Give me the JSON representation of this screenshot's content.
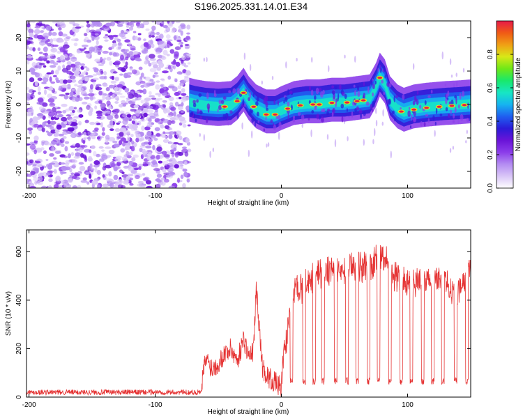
{
  "figure_title": "S196.2025.331.14.01.E34",
  "colors": {
    "axis": "#000000",
    "snr_line": "#e53232",
    "background": "#ffffff",
    "colormap": [
      "#ffffff",
      "#d9c6f7",
      "#b48cf2",
      "#8b3dea",
      "#6a14d8",
      "#2b1bd8",
      "#1f5ff0",
      "#16b4f0",
      "#17e6c4",
      "#19e86b",
      "#6ee817",
      "#d8e817",
      "#f0a015",
      "#f05a15",
      "#e81a4a"
    ]
  },
  "chart_data": [
    {
      "type": "heatmap",
      "name": "spectrogram",
      "title": "S196.2025.331.14.01.E34",
      "xlabel": "Height of straight line (km)",
      "ylabel": "Frequency (Hz)",
      "xlim": [
        -202,
        150
      ],
      "ylim": [
        -25,
        25
      ],
      "xticks": [
        -200,
        -100,
        0,
        100
      ],
      "yticks": [
        -20,
        -10,
        0,
        10,
        20
      ],
      "noise_region_x": [
        -202,
        -73
      ],
      "ridge_start_x": -73,
      "ridge_points": [
        [
          -73,
          0.5
        ],
        [
          -68,
          0
        ],
        [
          -60,
          -0.5
        ],
        [
          -50,
          -0.8
        ],
        [
          -40,
          -0.5
        ],
        [
          -35,
          1
        ],
        [
          -30,
          3.5
        ],
        [
          -26,
          1
        ],
        [
          -20,
          -1.5
        ],
        [
          -12,
          -3
        ],
        [
          -5,
          -3
        ],
        [
          0,
          -2
        ],
        [
          10,
          -0.5
        ],
        [
          20,
          0
        ],
        [
          30,
          0
        ],
        [
          40,
          0.5
        ],
        [
          50,
          0.5
        ],
        [
          60,
          1
        ],
        [
          70,
          1.5
        ],
        [
          75,
          5
        ],
        [
          78,
          8
        ],
        [
          82,
          6
        ],
        [
          86,
          1
        ],
        [
          92,
          -1.5
        ],
        [
          97,
          -2.5
        ],
        [
          105,
          -1.5
        ],
        [
          115,
          -1
        ],
        [
          130,
          -0.5
        ],
        [
          140,
          -0.3
        ],
        [
          150,
          0
        ]
      ],
      "peak_intensity_points_x": [
        -45,
        -35,
        -30,
        -22,
        -12,
        -5,
        5,
        15,
        25,
        30,
        40,
        52,
        60,
        65,
        78,
        95,
        105,
        115,
        125,
        135,
        145
      ],
      "colorbar": {
        "label": "Normalized spectral amplitude",
        "range": [
          0,
          1
        ],
        "ticks": [
          0.0,
          0.2,
          0.4,
          0.6,
          0.8
        ]
      }
    },
    {
      "type": "line",
      "name": "snr",
      "xlabel": "Height of straight line (km)",
      "ylabel": "SNR (10 * v/v)",
      "xlim": [
        -202,
        150
      ],
      "ylim": [
        0,
        690
      ],
      "xticks": [
        -200,
        -100,
        0,
        100
      ],
      "yticks": [
        0,
        200,
        400,
        600
      ],
      "baseline_region": {
        "x_range": [
          -202,
          -63
        ],
        "mean": 20
      },
      "transition_points": [
        [
          -63,
          60
        ],
        [
          -60,
          160
        ],
        [
          -55,
          120
        ],
        [
          -50,
          140
        ],
        [
          -45,
          180
        ],
        [
          -40,
          200
        ],
        [
          -35,
          150
        ],
        [
          -30,
          240
        ],
        [
          -25,
          160
        ],
        [
          -22,
          200
        ],
        [
          -20,
          450
        ],
        [
          -15,
          120
        ],
        [
          -10,
          80
        ],
        [
          -5,
          60
        ],
        [
          0,
          40
        ]
      ],
      "envelope_points": [
        [
          0,
          150
        ],
        [
          5,
          350
        ],
        [
          10,
          480
        ],
        [
          20,
          520
        ],
        [
          30,
          560
        ],
        [
          40,
          580
        ],
        [
          50,
          590
        ],
        [
          60,
          600
        ],
        [
          70,
          590
        ],
        [
          80,
          640
        ],
        [
          90,
          560
        ],
        [
          100,
          520
        ],
        [
          110,
          530
        ],
        [
          120,
          540
        ],
        [
          130,
          520
        ],
        [
          140,
          480
        ],
        [
          150,
          580
        ]
      ],
      "dip_x": [
        8,
        18,
        26,
        33,
        43,
        52,
        60,
        69,
        77,
        86,
        95,
        103,
        112,
        120,
        128,
        138,
        147
      ],
      "dip_value": 60
    }
  ]
}
